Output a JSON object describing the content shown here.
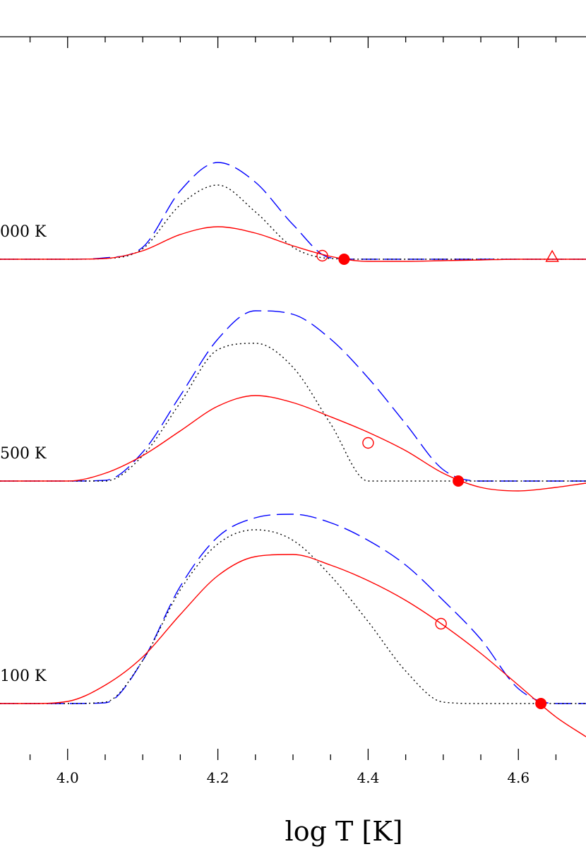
{
  "chart_data": {
    "type": "line",
    "xlabel": "log T [K]",
    "x": [
      3.91,
      3.95,
      4.0,
      4.05,
      4.1,
      4.15,
      4.2,
      4.25,
      4.3,
      4.35,
      4.4,
      4.45,
      4.5,
      4.55,
      4.6,
      4.65,
      4.69
    ],
    "xlim": [
      3.91,
      4.69
    ],
    "xticks": [
      {
        "value": 4,
        "label": "4.0"
      },
      4.2,
      4.4,
      4.6
    ],
    "xminorticks": [
      3.95,
      4.05,
      4.1,
      4.15,
      4.25,
      4.3,
      4.35,
      4.45,
      4.5,
      4.55,
      4.65
    ],
    "panels": [
      {
        "label": "000 K",
        "ylim": [
          -0.33,
          3.15
        ],
        "series": [
          {
            "color": "#0000ff",
            "style": "dashed",
            "values": [
              0,
              0,
              0,
              0.02,
              0.17,
              0.97,
              1.37,
              1.09,
              0.49,
              0.02,
              0,
              0,
              0,
              0,
              0,
              0,
              0
            ]
          },
          {
            "color": "#000000",
            "style": "dotted",
            "values": [
              0,
              0,
              0,
              0.01,
              0.15,
              0.77,
              1.05,
              0.67,
              0.17,
              0.01,
              0,
              0,
              0,
              0,
              0,
              0,
              0
            ]
          },
          {
            "color": "#ff0000",
            "style": "solid",
            "values": [
              0,
              0,
              0,
              0.01,
              0.12,
              0.35,
              0.46,
              0.37,
              0.19,
              0.04,
              -0.03,
              -0.03,
              -0.02,
              -0.01,
              0,
              0,
              0
            ]
          }
        ],
        "markers": [
          {
            "shape": "open-circle",
            "color": "#ff0000",
            "x": 4.339,
            "y": 0.05
          },
          {
            "shape": "filled-circle",
            "color": "#ff0000",
            "x": 4.368,
            "y": 0
          },
          {
            "shape": "open-triangle",
            "color": "#ff0000",
            "x": 4.645,
            "y": 0.03
          }
        ]
      },
      {
        "label": "500 K",
        "ylim": [
          -0.39,
          2.81
        ],
        "series": [
          {
            "color": "#0000ff",
            "style": "dashed",
            "values": [
              0,
              0,
              0,
              0.01,
              0.41,
              1.21,
              2.01,
              2.41,
              2.36,
              2.01,
              1.46,
              0.81,
              0.16,
              0,
              0,
              0,
              0
            ]
          },
          {
            "color": "#000000",
            "style": "dotted",
            "values": [
              0,
              0,
              0,
              0,
              0.36,
              1.11,
              1.86,
              1.95,
              1.61,
              0.81,
              0,
              0,
              0,
              0,
              0,
              0,
              0
            ]
          },
          {
            "color": "#ff0000",
            "style": "solid",
            "values": [
              0,
              0,
              0,
              0.11,
              0.36,
              0.71,
              1.06,
              1.21,
              1.11,
              0.91,
              0.69,
              0.43,
              0.11,
              -0.09,
              -0.14,
              -0.09,
              -0.03
            ]
          }
        ],
        "markers": [
          {
            "shape": "open-circle",
            "color": "#ff0000",
            "x": 4.4,
            "y": 0.54
          },
          {
            "shape": "filled-circle",
            "color": "#ff0000",
            "x": 4.52,
            "y": 0
          }
        ]
      },
      {
        "label": "100 K",
        "ylim": [
          -0.8,
          2.76
        ],
        "series": [
          {
            "color": "#0000ff",
            "style": "dashed",
            "values": [
              0,
              0,
              0,
              0.01,
              0.61,
              1.66,
              2.36,
              2.63,
              2.68,
              2.56,
              2.31,
              1.96,
              1.46,
              0.91,
              0.21,
              0,
              0
            ]
          },
          {
            "color": "#000000",
            "style": "dotted",
            "values": [
              0,
              0,
              0,
              0.02,
              0.61,
              1.61,
              2.26,
              2.46,
              2.31,
              1.81,
              1.16,
              0.46,
              0.02,
              0,
              0,
              0,
              0
            ]
          },
          {
            "color": "#ff0000",
            "style": "solid",
            "values": [
              0,
              0,
              0.03,
              0.26,
              0.66,
              1.26,
              1.81,
              2.08,
              2.11,
              1.96,
              1.74,
              1.46,
              1.11,
              0.71,
              0.26,
              -0.19,
              -0.47
            ]
          }
        ],
        "markers": [
          {
            "shape": "open-circle",
            "color": "#ff0000",
            "x": 4.497,
            "y": 1.13
          },
          {
            "shape": "filled-circle",
            "color": "#ff0000",
            "x": 4.63,
            "y": 0
          }
        ]
      }
    ]
  }
}
